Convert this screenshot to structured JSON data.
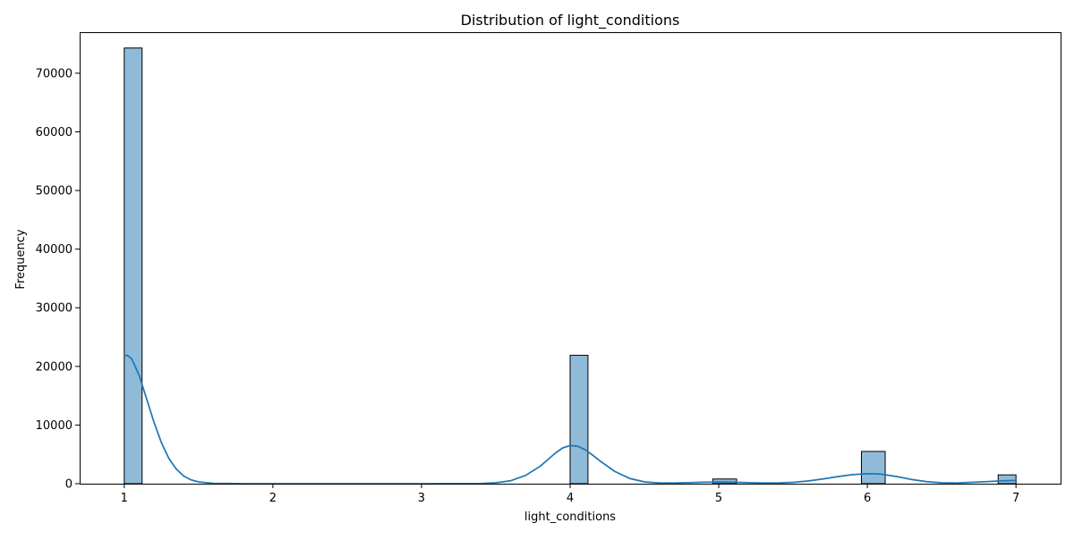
{
  "chart_data": {
    "type": "bar",
    "title": "Distribution of light_conditions",
    "xlabel": "light_conditions",
    "ylabel": "Frequency",
    "xlim": [
      0.7,
      7.3
    ],
    "ylim": [
      0,
      77000
    ],
    "xticks": [
      "1",
      "2",
      "3",
      "4",
      "5",
      "6",
      "7"
    ],
    "yticks": [
      "0",
      "10000",
      "20000",
      "30000",
      "40000",
      "50000",
      "60000",
      "70000"
    ],
    "grid": false,
    "bin_width": 0.12,
    "bar_color": "#1f77b4",
    "bar_alpha": 0.5,
    "bar_edge_color": "#000000",
    "series": [
      {
        "kind": "histogram",
        "bins": [
          {
            "x0": 1.0,
            "x1": 1.12,
            "count": 74300
          },
          {
            "x0": 3.88,
            "x1": 4.0,
            "count": 0
          },
          {
            "x0": 4.0,
            "x1": 4.12,
            "count": 21900
          },
          {
            "x0": 4.96,
            "x1": 5.12,
            "count": 800
          },
          {
            "x0": 5.96,
            "x1": 6.12,
            "count": 5500
          },
          {
            "x0": 6.88,
            "x1": 7.0,
            "count": 1500
          }
        ]
      },
      {
        "kind": "kde",
        "color": "#1f77b4",
        "x": [
          1.0,
          1.02,
          1.05,
          1.1,
          1.15,
          1.2,
          1.25,
          1.3,
          1.35,
          1.4,
          1.45,
          1.5,
          1.6,
          1.8,
          2.0,
          2.5,
          3.0,
          3.4,
          3.5,
          3.6,
          3.7,
          3.8,
          3.85,
          3.9,
          3.95,
          4.0,
          4.05,
          4.1,
          4.15,
          4.2,
          4.3,
          4.4,
          4.5,
          4.6,
          4.7,
          4.8,
          4.9,
          5.0,
          5.1,
          5.2,
          5.3,
          5.4,
          5.5,
          5.6,
          5.7,
          5.8,
          5.9,
          6.0,
          6.05,
          6.1,
          6.2,
          6.3,
          6.4,
          6.5,
          6.6,
          6.7,
          6.8,
          6.9,
          7.0
        ],
        "y": [
          21800,
          21900,
          21300,
          18500,
          14500,
          10500,
          7000,
          4300,
          2500,
          1300,
          650,
          300,
          60,
          0,
          0,
          0,
          0,
          30,
          150,
          500,
          1400,
          3000,
          4100,
          5200,
          6100,
          6500,
          6400,
          5800,
          4900,
          3900,
          2100,
          900,
          300,
          120,
          110,
          180,
          250,
          280,
          250,
          180,
          110,
          110,
          220,
          450,
          800,
          1200,
          1550,
          1700,
          1700,
          1600,
          1200,
          700,
          350,
          150,
          120,
          220,
          350,
          480,
          550
        ]
      }
    ]
  }
}
